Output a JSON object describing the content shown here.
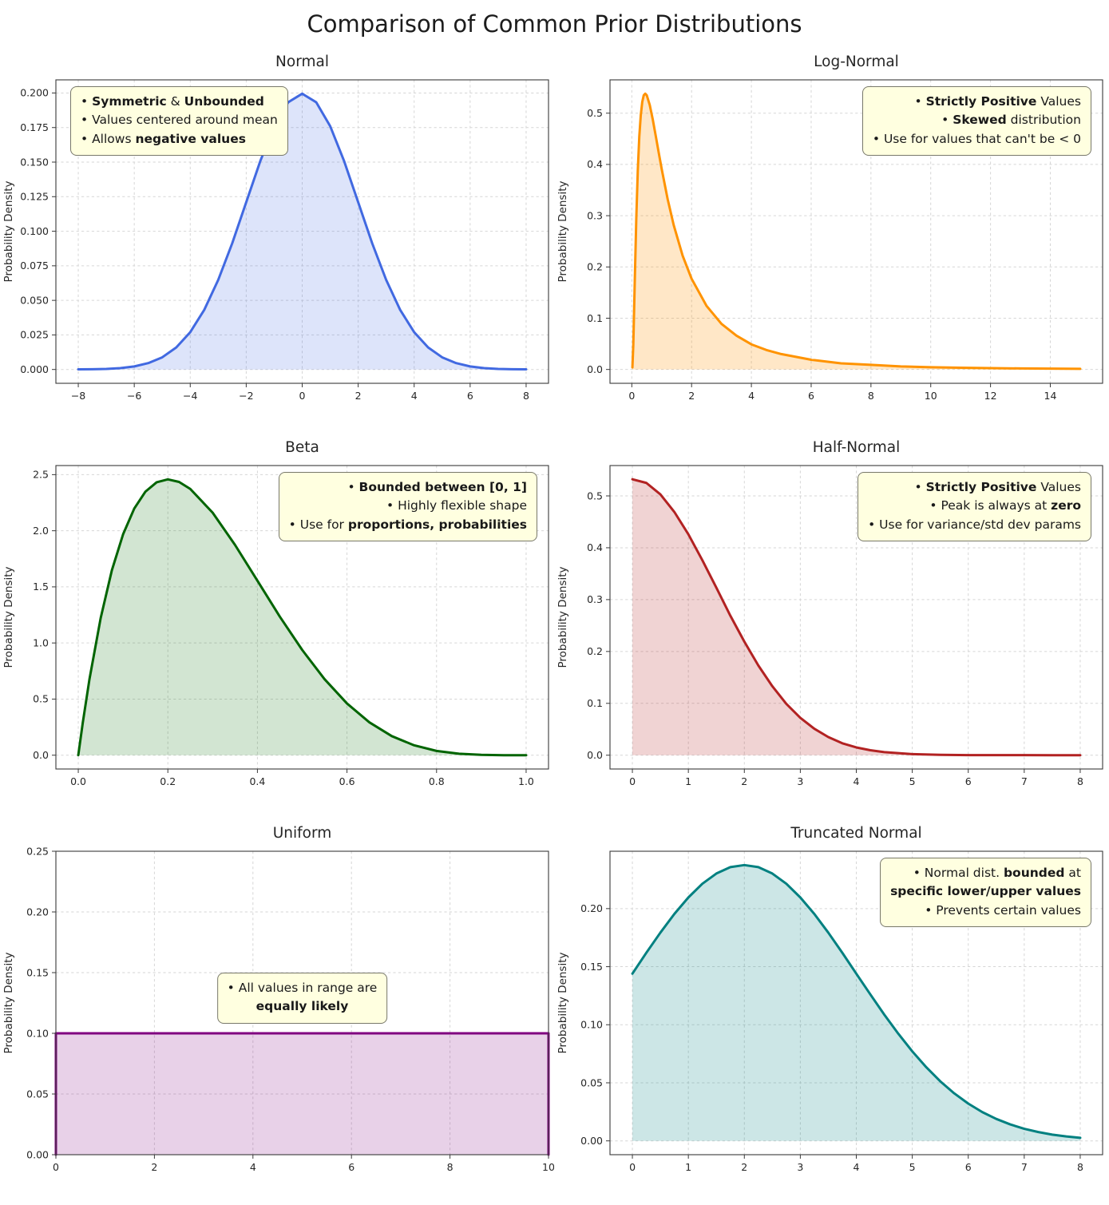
{
  "page": {
    "title": "Comparison of Common Prior Distributions"
  },
  "chart_data": [
    {
      "id": "normal",
      "type": "area",
      "title": "Normal",
      "ylabel": "Probability Density",
      "line_color": "#4169E1",
      "fill_color": "#4169E1",
      "fill_opacity": 0.18,
      "grid": true,
      "xlim": [
        -8.8,
        8.8
      ],
      "ylim": [
        -0.01,
        0.2095
      ],
      "xticks": [
        -8,
        -6,
        -4,
        -2,
        0,
        2,
        4,
        6,
        8
      ],
      "xtick_labels": [
        "−8",
        "−6",
        "−4",
        "−2",
        "0",
        "2",
        "4",
        "6",
        "8"
      ],
      "yticks": [
        0,
        0.025,
        0.05,
        0.075,
        0.1,
        0.125,
        0.15,
        0.175,
        0.2
      ],
      "ytick_labels": [
        "0.000",
        "0.025",
        "0.050",
        "0.075",
        "0.100",
        "0.125",
        "0.150",
        "0.175",
        "0.200"
      ],
      "x": [
        -8,
        -7.5,
        -7,
        -6.5,
        -6,
        -5.5,
        -5,
        -4.5,
        -4,
        -3.5,
        -3,
        -2.5,
        -2,
        -1.5,
        -1,
        -0.5,
        0,
        0.5,
        1,
        1.5,
        2,
        2.5,
        3,
        3.5,
        4,
        4.5,
        5,
        5.5,
        6,
        6.5,
        7,
        7.5,
        8
      ],
      "y": [
        0.0001,
        0.0002,
        0.0004,
        0.001,
        0.0022,
        0.0046,
        0.0088,
        0.0159,
        0.027,
        0.0431,
        0.0648,
        0.0913,
        0.121,
        0.1506,
        0.176,
        0.1933,
        0.1995,
        0.1933,
        0.176,
        0.1506,
        0.121,
        0.0913,
        0.0648,
        0.0431,
        0.027,
        0.0159,
        0.0088,
        0.0046,
        0.0022,
        0.001,
        0.0004,
        0.0002,
        0.0001
      ],
      "annotation": {
        "pos": "top-left",
        "align": "left",
        "lines": [
          [
            {
              "t": "• "
            },
            {
              "t": "Symmetric",
              "b": true
            },
            {
              "t": " & "
            },
            {
              "t": "Unbounded",
              "b": true
            }
          ],
          [
            {
              "t": "• Values centered around mean"
            }
          ],
          [
            {
              "t": "• Allows "
            },
            {
              "t": "negative values",
              "b": true
            }
          ]
        ]
      }
    },
    {
      "id": "lognormal",
      "type": "area",
      "title": "Log-Normal",
      "ylabel": "Probability Density",
      "line_color": "#FF9300",
      "fill_color": "#FF9300",
      "fill_opacity": 0.22,
      "grid": true,
      "xlim": [
        -0.73,
        15.75
      ],
      "ylim": [
        -0.027,
        0.565
      ],
      "xticks": [
        0,
        2,
        4,
        6,
        8,
        10,
        12,
        14
      ],
      "xtick_labels": [
        "0",
        "2",
        "4",
        "6",
        "8",
        "10",
        "12",
        "14"
      ],
      "yticks": [
        0,
        0.1,
        0.2,
        0.3,
        0.4,
        0.5
      ],
      "ytick_labels": [
        "0.0",
        "0.1",
        "0.2",
        "0.3",
        "0.4",
        "0.5"
      ],
      "x": [
        0.02,
        0.05,
        0.1,
        0.15,
        0.2,
        0.25,
        0.3,
        0.35,
        0.4,
        0.45,
        0.5,
        0.6,
        0.7,
        0.8,
        0.9,
        1,
        1.2,
        1.4,
        1.7,
        2,
        2.5,
        3,
        3.5,
        4,
        4.5,
        5,
        6,
        7,
        8,
        9,
        10,
        11,
        12,
        13,
        14,
        15
      ],
      "y": [
        0.004,
        0.048,
        0.174,
        0.295,
        0.388,
        0.454,
        0.496,
        0.522,
        0.535,
        0.538,
        0.535,
        0.516,
        0.488,
        0.456,
        0.423,
        0.391,
        0.332,
        0.282,
        0.222,
        0.177,
        0.124,
        0.089,
        0.066,
        0.049,
        0.038,
        0.03,
        0.019,
        0.012,
        0.009,
        0.006,
        0.0044,
        0.0033,
        0.0026,
        0.002,
        0.0016,
        0.0012
      ],
      "annotation": {
        "pos": "top-right",
        "align": "right",
        "lines": [
          [
            {
              "t": "• "
            },
            {
              "t": "Strictly Positive",
              "b": true
            },
            {
              "t": " Values"
            }
          ],
          [
            {
              "t": "• "
            },
            {
              "t": "Skewed",
              "b": true
            },
            {
              "t": " distribution"
            }
          ],
          [
            {
              "t": "• Use for values that can't be < 0"
            }
          ]
        ]
      }
    },
    {
      "id": "beta",
      "type": "area",
      "title": "Beta",
      "ylabel": "Probability Density",
      "line_color": "#006400",
      "fill_color": "#1E7B1E",
      "fill_opacity": 0.2,
      "grid": true,
      "xlim": [
        -0.05,
        1.05
      ],
      "ylim": [
        -0.123,
        2.581
      ],
      "xticks": [
        0,
        0.2,
        0.4,
        0.6,
        0.8,
        1
      ],
      "xtick_labels": [
        "0.0",
        "0.2",
        "0.4",
        "0.6",
        "0.8",
        "1.0"
      ],
      "yticks": [
        0,
        0.5,
        1,
        1.5,
        2,
        2.5
      ],
      "ytick_labels": [
        "0.0",
        "0.5",
        "1.0",
        "1.5",
        "2.0",
        "2.5"
      ],
      "x": [
        0,
        0.01,
        0.025,
        0.05,
        0.075,
        0.1,
        0.125,
        0.15,
        0.175,
        0.2,
        0.225,
        0.25,
        0.3,
        0.35,
        0.4,
        0.45,
        0.5,
        0.55,
        0.6,
        0.65,
        0.7,
        0.75,
        0.8,
        0.85,
        0.9,
        0.95,
        1
      ],
      "y": [
        0,
        0.288,
        0.678,
        1.222,
        1.648,
        1.968,
        2.198,
        2.349,
        2.432,
        2.458,
        2.435,
        2.373,
        2.161,
        1.874,
        1.555,
        1.235,
        0.938,
        0.677,
        0.461,
        0.293,
        0.17,
        0.088,
        0.038,
        0.013,
        0.003,
        0.0002,
        0
      ],
      "annotation": {
        "pos": "top-right",
        "align": "right",
        "lines": [
          [
            {
              "t": "• "
            },
            {
              "t": "Bounded between [0, 1]",
              "b": true
            }
          ],
          [
            {
              "t": "• Highly flexible shape"
            }
          ],
          [
            {
              "t": "• Use for "
            },
            {
              "t": "proportions, probabilities",
              "b": true
            }
          ]
        ]
      }
    },
    {
      "id": "halfnormal",
      "type": "area",
      "title": "Half-Normal",
      "ylabel": "Probability Density",
      "line_color": "#B22222",
      "fill_color": "#B22222",
      "fill_opacity": 0.2,
      "grid": true,
      "xlim": [
        -0.4,
        8.4
      ],
      "ylim": [
        -0.0266,
        0.5585
      ],
      "xticks": [
        0,
        1,
        2,
        3,
        4,
        5,
        6,
        7,
        8
      ],
      "xtick_labels": [
        "0",
        "1",
        "2",
        "3",
        "4",
        "5",
        "6",
        "7",
        "8"
      ],
      "yticks": [
        0,
        0.1,
        0.2,
        0.3,
        0.4,
        0.5
      ],
      "ytick_labels": [
        "0.0",
        "0.1",
        "0.2",
        "0.3",
        "0.4",
        "0.5"
      ],
      "x": [
        0,
        0.25,
        0.5,
        0.75,
        1,
        1.25,
        1.5,
        1.75,
        2,
        2.25,
        2.5,
        2.75,
        3,
        3.25,
        3.5,
        3.75,
        4,
        4.25,
        4.5,
        5,
        5.5,
        6,
        6.5,
        7,
        7.5,
        8
      ],
      "y": [
        0.532,
        0.525,
        0.503,
        0.469,
        0.426,
        0.376,
        0.323,
        0.269,
        0.219,
        0.173,
        0.133,
        0.099,
        0.072,
        0.051,
        0.035,
        0.023,
        0.015,
        0.0096,
        0.0059,
        0.0021,
        0.0007,
        0.0002,
        0.0001,
        0.0001,
        0,
        0
      ],
      "annotation": {
        "pos": "top-right",
        "align": "right",
        "lines": [
          [
            {
              "t": "• "
            },
            {
              "t": "Strictly Positive",
              "b": true
            },
            {
              "t": " Values"
            }
          ],
          [
            {
              "t": "• Peak is always at "
            },
            {
              "t": "zero",
              "b": true
            }
          ],
          [
            {
              "t": "• Use for variance/std dev params"
            }
          ]
        ]
      }
    },
    {
      "id": "uniform",
      "type": "area",
      "title": "Uniform",
      "ylabel": "Probability Density",
      "line_color": "#800080",
      "fill_color": "#800080",
      "fill_opacity": 0.18,
      "grid": true,
      "xlim": [
        0,
        10
      ],
      "ylim": [
        0,
        0.25
      ],
      "xticks": [
        0,
        2,
        4,
        6,
        8,
        10
      ],
      "xtick_labels": [
        "0",
        "2",
        "4",
        "6",
        "8",
        "10"
      ],
      "yticks": [
        0,
        0.05,
        0.1,
        0.15,
        0.2,
        0.25
      ],
      "ytick_labels": [
        "0.00",
        "0.05",
        "0.10",
        "0.15",
        "0.20",
        "0.25"
      ],
      "x": [
        0,
        0,
        10,
        10
      ],
      "y": [
        0,
        0.1,
        0.1,
        0
      ],
      "annotation": {
        "pos": "center",
        "align": "center",
        "lines": [
          [
            {
              "t": "• All values in range are"
            }
          ],
          [
            {
              "t": "equally likely",
              "b": true
            }
          ]
        ]
      }
    },
    {
      "id": "truncnorm",
      "type": "area",
      "title": "Truncated Normal",
      "ylabel": "Probability Density",
      "line_color": "#008080",
      "fill_color": "#008080",
      "fill_opacity": 0.2,
      "grid": true,
      "xlim": [
        -0.4,
        8.4
      ],
      "ylim": [
        -0.0119,
        0.2494
      ],
      "xticks": [
        0,
        1,
        2,
        3,
        4,
        5,
        6,
        7,
        8
      ],
      "xtick_labels": [
        "0",
        "1",
        "2",
        "3",
        "4",
        "5",
        "6",
        "7",
        "8"
      ],
      "yticks": [
        0,
        0.05,
        0.1,
        0.15,
        0.2
      ],
      "ytick_labels": [
        "0.00",
        "0.05",
        "0.10",
        "0.15",
        "0.20"
      ],
      "x": [
        0,
        0.25,
        0.5,
        0.75,
        1,
        1.25,
        1.5,
        1.75,
        2,
        2.25,
        2.5,
        2.75,
        3,
        3.25,
        3.5,
        3.75,
        4,
        4.25,
        4.5,
        4.75,
        5,
        5.25,
        5.5,
        5.75,
        6,
        6.25,
        6.5,
        6.75,
        7,
        7.25,
        7.5,
        7.75,
        8
      ],
      "y": [
        0.144,
        0.162,
        0.1793,
        0.1954,
        0.2096,
        0.2214,
        0.2302,
        0.2357,
        0.2375,
        0.2357,
        0.2302,
        0.2214,
        0.2096,
        0.1954,
        0.1793,
        0.162,
        0.144,
        0.1262,
        0.1087,
        0.0923,
        0.0771,
        0.0634,
        0.0513,
        0.0409,
        0.0321,
        0.0248,
        0.0189,
        0.0142,
        0.0104,
        0.0076,
        0.0054,
        0.0038,
        0.0026
      ],
      "annotation": {
        "pos": "top-right",
        "align": "right",
        "lines": [
          [
            {
              "t": "• Normal dist. "
            },
            {
              "t": "bounded",
              "b": true
            },
            {
              "t": " at"
            }
          ],
          [
            {
              "t": "specific lower/upper values",
              "b": true
            }
          ],
          [
            {
              "t": "• Prevents certain values"
            }
          ]
        ]
      }
    }
  ]
}
